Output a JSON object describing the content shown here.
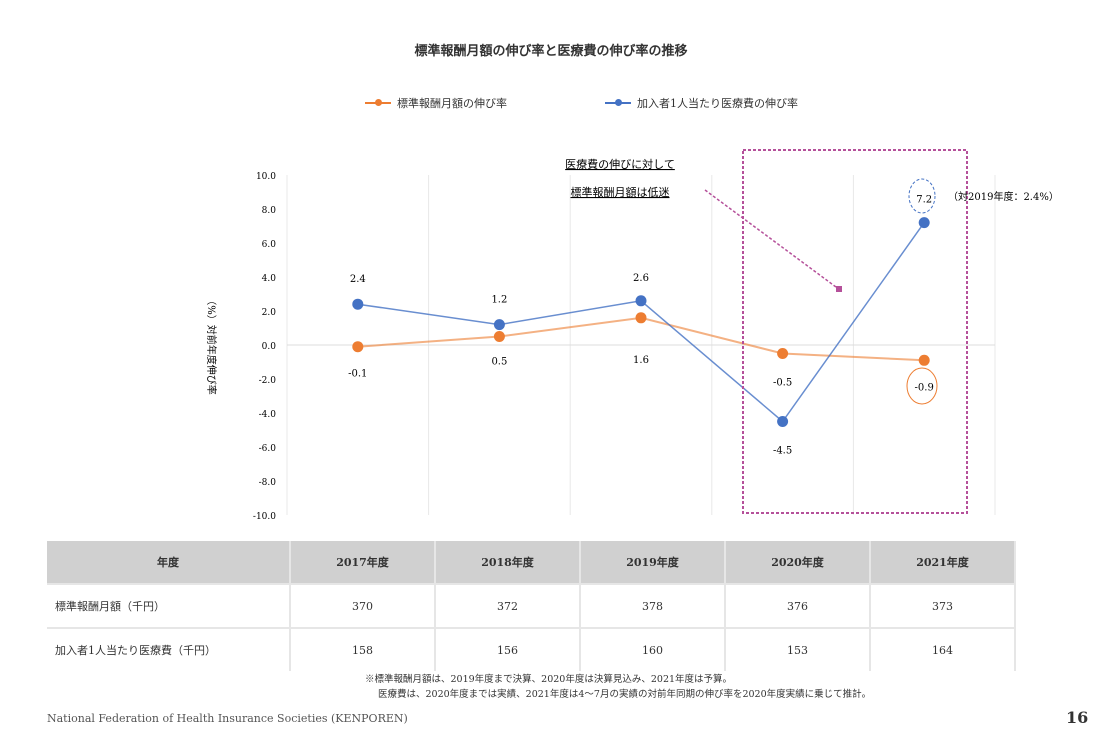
{
  "chart_data": {
    "type": "line",
    "title": "標準報酬月額の伸び率と医療費の伸び率の推移",
    "ylabel": "（%）対前年度伸び率",
    "ylim": [
      -10,
      10
    ],
    "yticks": [
      "10.0",
      "8.0",
      "6.0",
      "4.0",
      "2.0",
      "0.0",
      "-2.0",
      "-4.0",
      "-6.0",
      "-8.0",
      "-10.0"
    ],
    "categories": [
      "2017年度",
      "2018年度",
      "2019年度",
      "2020年度",
      "2021年度"
    ],
    "series": [
      {
        "name": "標準報酬月額の伸び率",
        "color": "#ed7d31",
        "values": [
          -0.1,
          0.5,
          1.6,
          -0.5,
          -0.9
        ],
        "labels": [
          "-0.1",
          "0.5",
          "1.6",
          "-0.5",
          "-0.9"
        ]
      },
      {
        "name": "加入者1人当たり医療費の伸び率",
        "color": "#4472c4",
        "values": [
          2.4,
          1.2,
          2.6,
          -4.5,
          7.2
        ],
        "labels": [
          "2.4",
          "1.2",
          "2.6",
          "-4.5",
          "7.2"
        ]
      }
    ],
    "annotations": {
      "callout_line1": "医療費の伸びに対して",
      "callout_line2": "標準報酬月額は低迷",
      "side_note": "（対2019年度：2.4%）"
    },
    "legend_position": "top"
  },
  "table": {
    "header": [
      "年度",
      "2017年度",
      "2018年度",
      "2019年度",
      "2020年度",
      "2021年度"
    ],
    "rows": [
      {
        "label": "標準報酬月額（千円）",
        "values": [
          "370",
          "372",
          "378",
          "376",
          "373"
        ]
      },
      {
        "label": "加入者1人当たり医療費（千円）",
        "values": [
          "158",
          "156",
          "160",
          "153",
          "164"
        ]
      }
    ]
  },
  "notes": [
    "※標準報酬月額は、2019年度まで決算、2020年度は決算見込み、2021年度は予算。",
    "医療費は、2020年度までは実績、2021年度は4～7月の実績の対前年同期の伸び率を2020年度実績に乗じて推計。"
  ],
  "footer": "National Federation of Health Insurance Societies (KENPOREN)",
  "page_number": "16"
}
